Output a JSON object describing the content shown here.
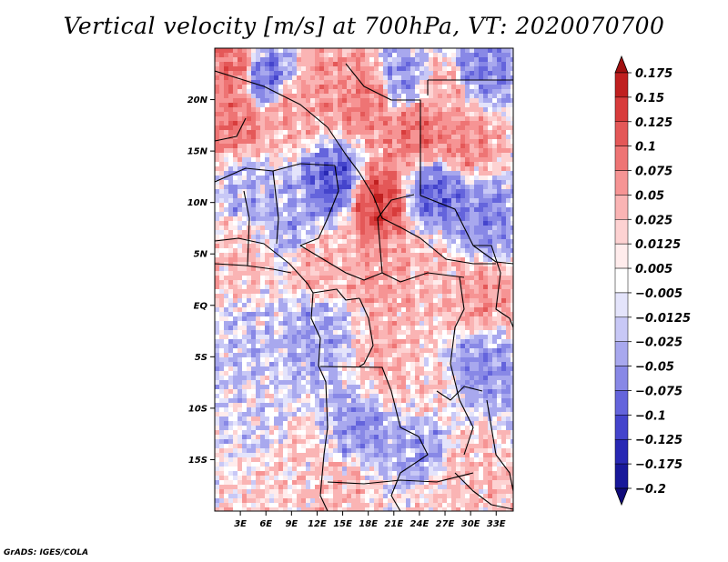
{
  "title": "Vertical velocity [m/s] at 700hPa, VT: 2020070700",
  "credit": "GrADS: IGES/COLA",
  "chart_data": {
    "type": "heatmap",
    "title": "Vertical velocity [m/s] at 700hPa, VT: 2020070700",
    "variable": "Vertical velocity",
    "units": "m/s",
    "level": "700hPa",
    "valid_time": "2020070700",
    "x_axis": {
      "range": [
        0,
        35
      ],
      "ticks": [
        3,
        6,
        9,
        12,
        15,
        18,
        21,
        24,
        27,
        30,
        33
      ],
      "tick_labels": [
        "3E",
        "6E",
        "9E",
        "12E",
        "15E",
        "18E",
        "21E",
        "24E",
        "27E",
        "30E",
        "33E"
      ]
    },
    "y_axis": {
      "range": [
        -20,
        25
      ],
      "ticks": [
        20,
        15,
        10,
        5,
        0,
        -5,
        -10,
        -15
      ],
      "tick_labels": [
        "20N",
        "15N",
        "10N",
        "5N",
        "EQ",
        "5S",
        "10S",
        "15S"
      ]
    },
    "colorbar": {
      "levels": [
        "0.175",
        "0.15",
        "0.125",
        "0.1",
        "0.075",
        "0.05",
        "0.025",
        "0.0125",
        "0.005",
        "−0.005",
        "−0.0125",
        "−0.025",
        "−0.05",
        "−0.075",
        "−0.1",
        "−0.125",
        "−0.175",
        "−0.2"
      ],
      "colors": [
        "#a01010",
        "#c02020",
        "#d83c3c",
        "#e45858",
        "#ee7474",
        "#f69494",
        "#fab4b4",
        "#fdd2d2",
        "#ffecec",
        "#ffffff",
        "#e4e4fb",
        "#c8c8f6",
        "#a8a8ee",
        "#8888e6",
        "#6464dc",
        "#4444cc",
        "#2828b4",
        "#18189a",
        "#100a7a"
      ]
    },
    "regions": [
      {
        "lon": 2,
        "lat": 23,
        "value": 0.09
      },
      {
        "lon": 6,
        "lat": 22,
        "value": -0.07
      },
      {
        "lon": 3,
        "lat": 18,
        "value": 0.08
      },
      {
        "lon": 9,
        "lat": 19,
        "value": 0.05
      },
      {
        "lon": 14,
        "lat": 22,
        "value": 0.06
      },
      {
        "lon": 18,
        "lat": 20,
        "value": 0.08
      },
      {
        "lon": 22,
        "lat": 22,
        "value": -0.05
      },
      {
        "lon": 27,
        "lat": 21,
        "value": 0.04
      },
      {
        "lon": 31,
        "lat": 23,
        "value": -0.06
      },
      {
        "lon": 24,
        "lat": 17,
        "value": 0.09
      },
      {
        "lon": 29,
        "lat": 16,
        "value": 0.07
      },
      {
        "lon": 14,
        "lat": 12,
        "value": -0.09
      },
      {
        "lon": 19,
        "lat": 10,
        "value": 0.12
      },
      {
        "lon": 26,
        "lat": 11,
        "value": -0.08
      },
      {
        "lon": 31,
        "lat": 8,
        "value": -0.06
      },
      {
        "lon": 4,
        "lat": 11,
        "value": -0.03
      },
      {
        "lon": 9,
        "lat": 8,
        "value": -0.04
      },
      {
        "lon": 3,
        "lat": 5,
        "value": 0.03
      },
      {
        "lon": 12,
        "lat": 4,
        "value": 0.04
      },
      {
        "lon": 20,
        "lat": 3,
        "value": 0.05
      },
      {
        "lon": 26,
        "lat": 3,
        "value": 0.03
      },
      {
        "lon": 31,
        "lat": 1,
        "value": 0.06
      },
      {
        "lon": 4,
        "lat": -4,
        "value": -0.02
      },
      {
        "lon": 12,
        "lat": -3,
        "value": -0.04
      },
      {
        "lon": 20,
        "lat": -6,
        "value": 0.04
      },
      {
        "lon": 25,
        "lat": -8,
        "value": 0.02
      },
      {
        "lon": 31,
        "lat": -6,
        "value": -0.05
      },
      {
        "lon": 5,
        "lat": -12,
        "value": -0.01
      },
      {
        "lon": 10,
        "lat": -15,
        "value": 0.02
      },
      {
        "lon": 17,
        "lat": -12,
        "value": -0.05
      },
      {
        "lon": 24,
        "lat": -14,
        "value": -0.04
      },
      {
        "lon": 30,
        "lat": -16,
        "value": 0.03
      },
      {
        "lon": 6,
        "lat": -18,
        "value": 0.02
      },
      {
        "lon": 15,
        "lat": -18,
        "value": 0.03
      },
      {
        "lon": 27,
        "lat": -19,
        "value": 0.02
      }
    ]
  }
}
